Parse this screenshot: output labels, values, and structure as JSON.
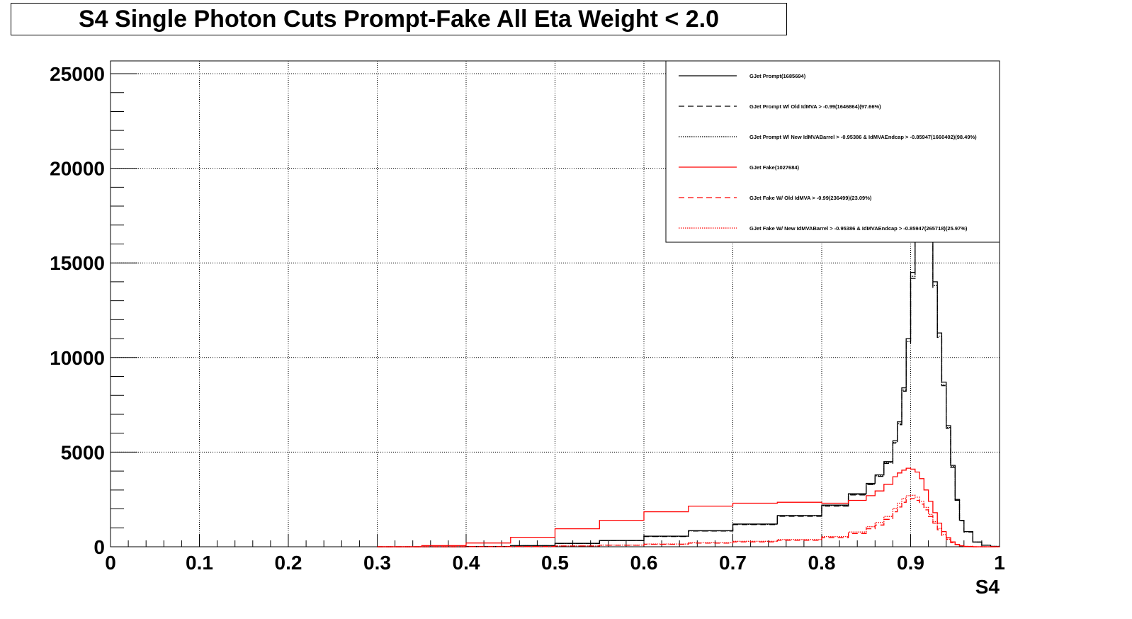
{
  "title": "S4 Single Photon Cuts Prompt-Fake All Eta Weight < 2.0",
  "chart_data": {
    "type": "line",
    "title": "S4 Single Photon Cuts Prompt-Fake All Eta Weight < 2.0",
    "xlabel": "S4",
    "ylabel": "",
    "xlim": [
      0,
      1
    ],
    "ylim": [
      0,
      25000
    ],
    "grid": true,
    "legend_position": "top-right",
    "x_ticks": [
      "0",
      "0.1",
      "0.2",
      "0.3",
      "0.4",
      "0.5",
      "0.6",
      "0.7",
      "0.8",
      "0.9",
      "1"
    ],
    "y_ticks": [
      "0",
      "5000",
      "10000",
      "15000",
      "20000",
      "25000"
    ],
    "x": [
      0.3,
      0.35,
      0.4,
      0.45,
      0.5,
      0.55,
      0.6,
      0.65,
      0.7,
      0.75,
      0.8,
      0.83,
      0.85,
      0.86,
      0.87,
      0.88,
      0.885,
      0.89,
      0.895,
      0.9,
      0.905,
      0.91,
      0.915,
      0.92,
      0.925,
      0.93,
      0.935,
      0.94,
      0.945,
      0.95,
      0.955,
      0.96,
      0.97,
      0.98,
      0.99,
      1.0
    ],
    "series": [
      {
        "name": "GJet Prompt(1685694)",
        "color": "#000000",
        "style": "solid",
        "values": [
          0,
          0,
          10,
          60,
          180,
          330,
          560,
          850,
          1200,
          1650,
          2200,
          2800,
          3350,
          3800,
          4500,
          5600,
          6600,
          8400,
          11000,
          14500,
          18200,
          20000,
          18500,
          16500,
          14000,
          11300,
          8700,
          6400,
          4300,
          2500,
          1400,
          800,
          250,
          80,
          20,
          0
        ]
      },
      {
        "name": "GJet Prompt W/ Old IdMVA > -0.99(1646864)(97.66%)",
        "color": "#000000",
        "style": "dashed",
        "values": [
          0,
          0,
          8,
          55,
          170,
          320,
          540,
          830,
          1170,
          1610,
          2150,
          2740,
          3280,
          3720,
          4400,
          5480,
          6450,
          8220,
          10760,
          14180,
          17800,
          19560,
          18100,
          16140,
          13700,
          11060,
          8510,
          6260,
          4200,
          2450,
          1370,
          780,
          245,
          78,
          19,
          0
        ]
      },
      {
        "name": "GJet Prompt W/ New IdMVABarrel > -0.95386 & IdMVAEndcap > -0.85947(1660402)(98.49%)",
        "color": "#000000",
        "style": "dotted",
        "values": [
          0,
          0,
          9,
          58,
          176,
          325,
          550,
          840,
          1185,
          1630,
          2170,
          2760,
          3300,
          3750,
          4440,
          5520,
          6500,
          8280,
          10840,
          14290,
          17930,
          19700,
          18230,
          16260,
          13800,
          11130,
          8570,
          6300,
          4240,
          2460,
          1380,
          790,
          246,
          79,
          19,
          0
        ]
      },
      {
        "name": "GJet Fake(1027684)",
        "color": "#ff0000",
        "style": "solid",
        "values": [
          0,
          60,
          200,
          500,
          950,
          1400,
          1850,
          2150,
          2300,
          2350,
          2300,
          2450,
          2700,
          2950,
          3300,
          3700,
          3900,
          4050,
          4150,
          4100,
          3950,
          3600,
          3000,
          2400,
          1800,
          1250,
          800,
          480,
          260,
          120,
          50,
          15,
          0,
          0,
          0,
          0
        ]
      },
      {
        "name": "GJet Fake W/ Old IdMVA > -0.99(236499)(23.09%)",
        "color": "#ff0000",
        "style": "dashed",
        "values": [
          0,
          0,
          2,
          10,
          40,
          80,
          130,
          190,
          260,
          340,
          480,
          700,
          950,
          1150,
          1450,
          1850,
          2100,
          2350,
          2500,
          2550,
          2450,
          2250,
          1950,
          1600,
          1250,
          900,
          600,
          380,
          220,
          110,
          50,
          20,
          0,
          0,
          0,
          0
        ]
      },
      {
        "name": "GJet Fake W/ New IdMVABarrel > -0.95386 & IdMVAEndcap > -0.85947(265718)(25.97%)",
        "color": "#ff0000",
        "style": "dotted",
        "values": [
          0,
          0,
          3,
          12,
          45,
          90,
          145,
          210,
          290,
          380,
          540,
          780,
          1060,
          1280,
          1600,
          2030,
          2300,
          2550,
          2700,
          2720,
          2620,
          2400,
          2080,
          1710,
          1330,
          960,
          640,
          400,
          235,
          115,
          52,
          21,
          0,
          0,
          0,
          0
        ]
      }
    ]
  }
}
